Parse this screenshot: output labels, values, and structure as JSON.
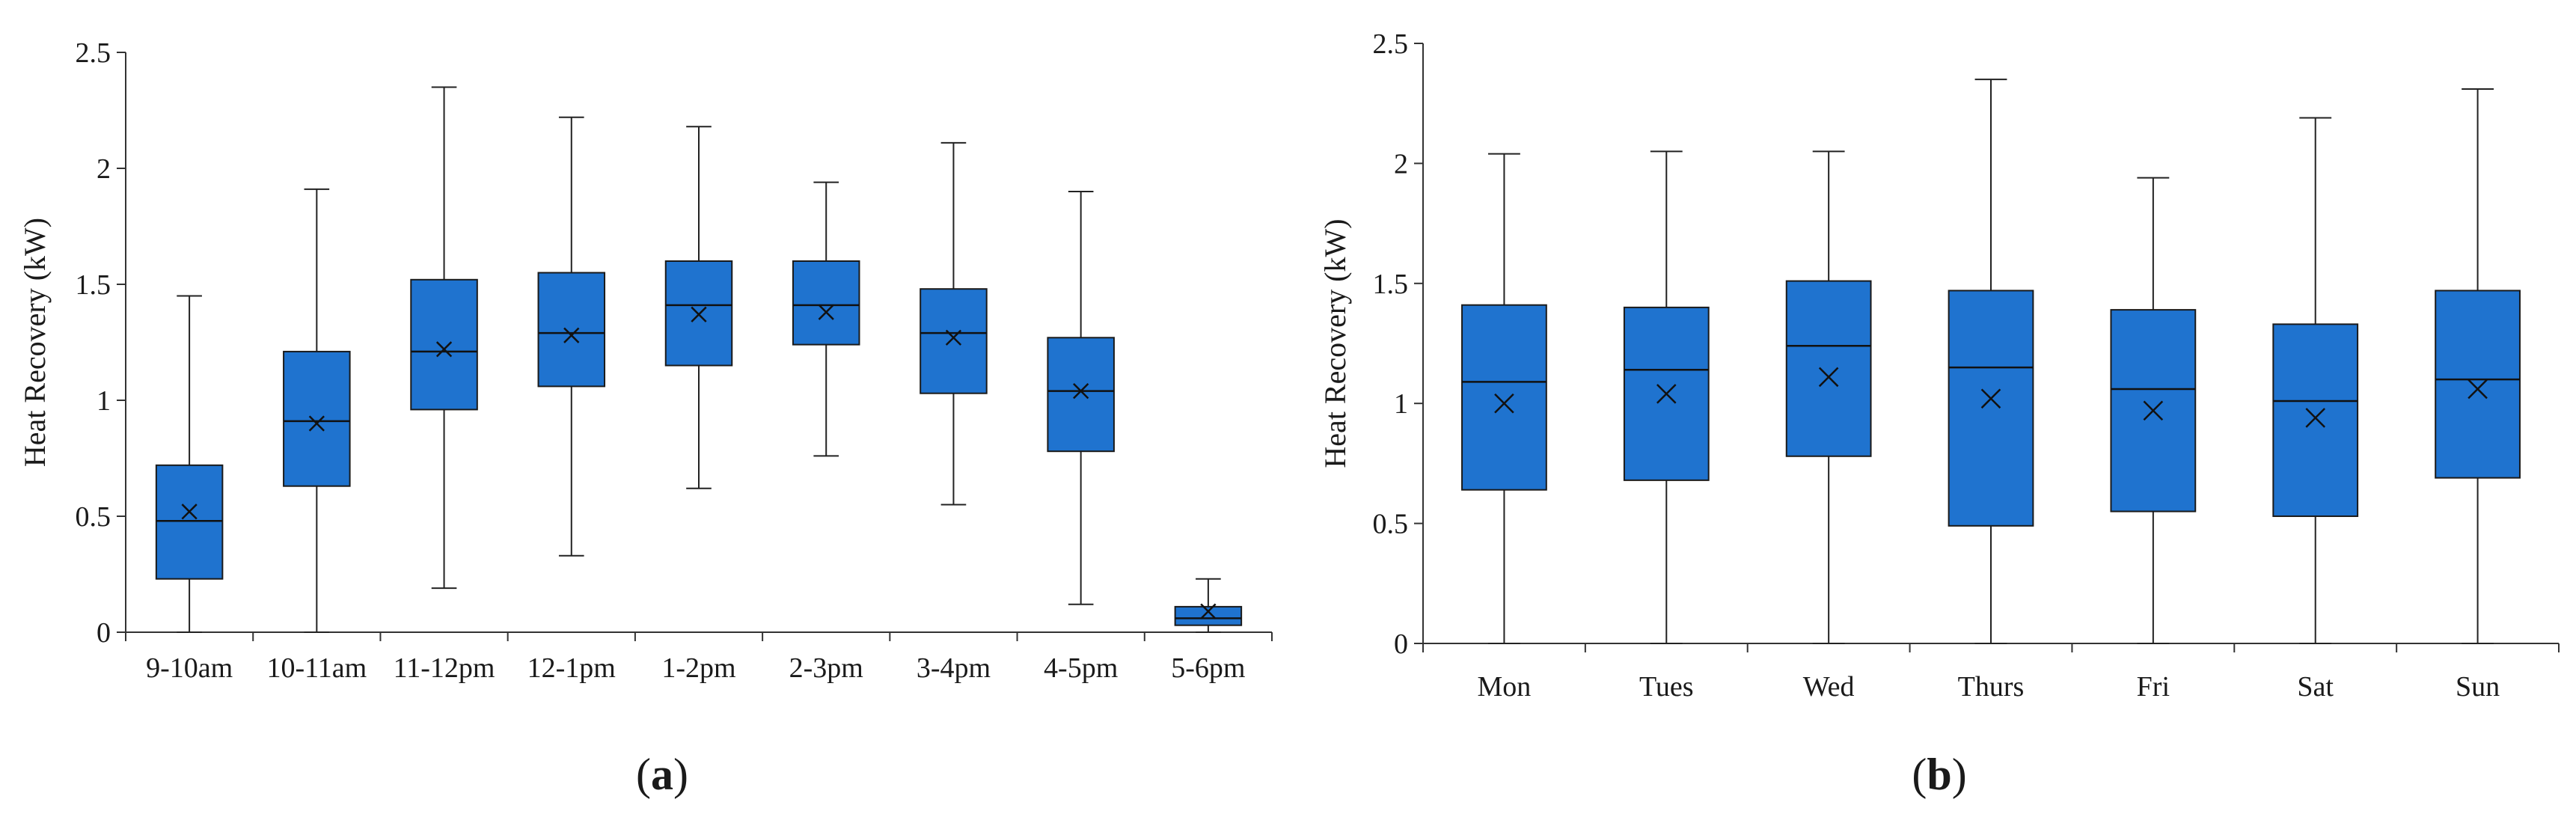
{
  "chart_data": [
    {
      "type": "box",
      "panel_label": "a",
      "panel_label_text": "(a)",
      "ylabel": "Heat Recovery (kW)",
      "xlabel": "",
      "ylim": [
        0,
        2.5
      ],
      "yticks": [
        0,
        0.5,
        1,
        1.5,
        2,
        2.5
      ],
      "ytick_labels": [
        "0",
        "0.5",
        "1",
        "1.5",
        "2",
        "2.5"
      ],
      "grid": false,
      "box_color": "#1f73cf",
      "categories": [
        "9-10am",
        "10-11am",
        "11-12pm",
        "12-1pm",
        "1-2pm",
        "2-3pm",
        "3-4pm",
        "4-5pm",
        "5-6pm"
      ],
      "boxes": [
        {
          "min": 0.0,
          "q1": 0.23,
          "median": 0.48,
          "q3": 0.72,
          "max": 1.45,
          "mean": 0.52
        },
        {
          "min": 0.0,
          "q1": 0.63,
          "median": 0.91,
          "q3": 1.21,
          "max": 1.91,
          "mean": 0.9
        },
        {
          "min": 0.19,
          "q1": 0.96,
          "median": 1.21,
          "q3": 1.52,
          "max": 2.35,
          "mean": 1.22
        },
        {
          "min": 0.33,
          "q1": 1.06,
          "median": 1.29,
          "q3": 1.55,
          "max": 2.22,
          "mean": 1.28
        },
        {
          "min": 0.62,
          "q1": 1.15,
          "median": 1.41,
          "q3": 1.6,
          "max": 2.18,
          "mean": 1.37
        },
        {
          "min": 0.76,
          "q1": 1.24,
          "median": 1.41,
          "q3": 1.6,
          "max": 1.94,
          "mean": 1.38
        },
        {
          "min": 0.55,
          "q1": 1.03,
          "median": 1.29,
          "q3": 1.48,
          "max": 2.11,
          "mean": 1.27
        },
        {
          "min": 0.12,
          "q1": 0.78,
          "median": 1.04,
          "q3": 1.27,
          "max": 1.9,
          "mean": 1.04
        },
        {
          "min": 0.0,
          "q1": 0.03,
          "median": 0.06,
          "q3": 0.11,
          "max": 0.23,
          "mean": 0.09
        }
      ]
    },
    {
      "type": "box",
      "panel_label": "b",
      "panel_label_text": "(b)",
      "ylabel": "Heat Recovery (kW)",
      "xlabel": "",
      "ylim": [
        0,
        2.5
      ],
      "yticks": [
        0,
        0.5,
        1,
        1.5,
        2,
        2.5
      ],
      "ytick_labels": [
        "0",
        "0.5",
        "1",
        "1.5",
        "2",
        "2.5"
      ],
      "grid": false,
      "box_color": "#1f73cf",
      "categories": [
        "Mon",
        "Tues",
        "Wed",
        "Thurs",
        "Fri",
        "Sat",
        "Sun"
      ],
      "boxes": [
        {
          "min": 0.0,
          "q1": 0.64,
          "median": 1.09,
          "q3": 1.41,
          "max": 2.04,
          "mean": 1.0
        },
        {
          "min": 0.0,
          "q1": 0.68,
          "median": 1.14,
          "q3": 1.4,
          "max": 2.05,
          "mean": 1.04
        },
        {
          "min": 0.0,
          "q1": 0.78,
          "median": 1.24,
          "q3": 1.51,
          "max": 2.05,
          "mean": 1.11
        },
        {
          "min": 0.0,
          "q1": 0.49,
          "median": 1.15,
          "q3": 1.47,
          "max": 2.35,
          "mean": 1.02
        },
        {
          "min": 0.0,
          "q1": 0.55,
          "median": 1.06,
          "q3": 1.39,
          "max": 1.94,
          "mean": 0.97
        },
        {
          "min": 0.0,
          "q1": 0.53,
          "median": 1.01,
          "q3": 1.33,
          "max": 2.19,
          "mean": 0.94
        },
        {
          "min": 0.0,
          "q1": 0.69,
          "median": 1.1,
          "q3": 1.47,
          "max": 2.31,
          "mean": 1.06
        }
      ]
    }
  ]
}
